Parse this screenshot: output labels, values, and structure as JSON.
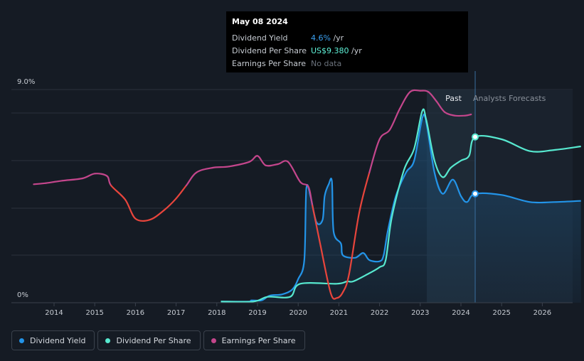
{
  "tooltip": {
    "date": "May 08 2024",
    "rows": [
      {
        "label": "Dividend Yield",
        "value": "4.6%",
        "unit": " /yr"
      },
      {
        "label": "Dividend Per Share",
        "value": "US$9.380",
        "unit": " /yr"
      },
      {
        "label": "Earnings Per Share",
        "value": "No data",
        "unit": ""
      }
    ]
  },
  "legend": [
    {
      "label": "Dividend Yield",
      "color": "#2394e8"
    },
    {
      "label": "Dividend Per Share",
      "color": "#57e8cf"
    },
    {
      "label": "Earnings Per Share",
      "color": "#c4468c"
    }
  ],
  "chart_data": {
    "type": "line",
    "x_ticks": [
      "2014",
      "2015",
      "2016",
      "2017",
      "2018",
      "2019",
      "2020",
      "2021",
      "2022",
      "2023",
      "2024",
      "2025",
      "2026"
    ],
    "y_tick_labels": [
      "0%",
      "9.0%"
    ],
    "ylim": [
      0,
      9.0
    ],
    "xlim": [
      2013.0,
      2027.0
    ],
    "past_label": "Past",
    "forecast_label": "Analysts Forecasts",
    "forecast_start": 2024.35,
    "colors": {
      "dividend_yield": "#2394e8",
      "dividend_per_share": "#57e8cf",
      "earnings_positive": "#c4468c",
      "earnings_negative": "#e8453c"
    },
    "series": [
      {
        "name": "Dividend Yield",
        "points": [
          [
            2018.1,
            0.05
          ],
          [
            2018.8,
            0.05
          ],
          [
            2018.85,
            0.1
          ],
          [
            2019.1,
            0.1
          ],
          [
            2019.3,
            0.3
          ],
          [
            2019.6,
            0.35
          ],
          [
            2019.85,
            0.55
          ],
          [
            2020.0,
            1.0
          ],
          [
            2020.15,
            1.8
          ],
          [
            2020.2,
            4.8
          ],
          [
            2020.3,
            4.5
          ],
          [
            2020.45,
            3.4
          ],
          [
            2020.6,
            3.5
          ],
          [
            2020.65,
            4.5
          ],
          [
            2020.75,
            5.0
          ],
          [
            2020.83,
            5.1
          ],
          [
            2020.87,
            3.0
          ],
          [
            2021.05,
            2.5
          ],
          [
            2021.1,
            2.0
          ],
          [
            2021.4,
            1.9
          ],
          [
            2021.6,
            2.1
          ],
          [
            2021.75,
            1.8
          ],
          [
            2022.0,
            1.75
          ],
          [
            2022.1,
            2.0
          ],
          [
            2022.2,
            3.0
          ],
          [
            2022.4,
            4.5
          ],
          [
            2022.65,
            5.5
          ],
          [
            2022.85,
            6.0
          ],
          [
            2023.05,
            7.8
          ],
          [
            2023.15,
            7.6
          ],
          [
            2023.35,
            5.5
          ],
          [
            2023.55,
            4.6
          ],
          [
            2023.8,
            5.2
          ],
          [
            2024.0,
            4.5
          ],
          [
            2024.15,
            4.25
          ],
          [
            2024.35,
            4.6
          ],
          [
            2025.0,
            4.55
          ],
          [
            2025.7,
            4.25
          ],
          [
            2026.3,
            4.25
          ],
          [
            2026.95,
            4.3
          ]
        ]
      },
      {
        "name": "Dividend Per Share",
        "points": [
          [
            2018.1,
            0.05
          ],
          [
            2018.9,
            0.05
          ],
          [
            2019.25,
            0.25
          ],
          [
            2019.8,
            0.25
          ],
          [
            2020.05,
            0.8
          ],
          [
            2020.95,
            0.8
          ],
          [
            2021.2,
            0.9
          ],
          [
            2021.35,
            0.9
          ],
          [
            2021.7,
            1.2
          ],
          [
            2022.0,
            1.5
          ],
          [
            2022.15,
            1.8
          ],
          [
            2022.3,
            3.6
          ],
          [
            2022.6,
            5.6
          ],
          [
            2022.85,
            6.5
          ],
          [
            2023.05,
            8.1
          ],
          [
            2023.15,
            7.7
          ],
          [
            2023.35,
            6.0
          ],
          [
            2023.55,
            5.3
          ],
          [
            2023.75,
            5.7
          ],
          [
            2024.0,
            6.0
          ],
          [
            2024.2,
            6.2
          ],
          [
            2024.35,
            7.0
          ],
          [
            2025.0,
            6.9
          ],
          [
            2025.7,
            6.4
          ],
          [
            2026.3,
            6.45
          ],
          [
            2026.95,
            6.6
          ]
        ]
      },
      {
        "name": "Earnings Per Share",
        "points": [
          [
            2013.5,
            5.0
          ],
          [
            2013.8,
            5.05
          ],
          [
            2014.2,
            5.15
          ],
          [
            2014.7,
            5.25
          ],
          [
            2015.0,
            5.45
          ],
          [
            2015.3,
            5.35
          ],
          [
            2015.4,
            4.95
          ],
          [
            2015.75,
            4.35
          ],
          [
            2016.0,
            3.55
          ],
          [
            2016.35,
            3.5
          ],
          [
            2016.7,
            3.9
          ],
          [
            2017.0,
            4.4
          ],
          [
            2017.25,
            4.95
          ],
          [
            2017.5,
            5.5
          ],
          [
            2017.9,
            5.7
          ],
          [
            2018.3,
            5.75
          ],
          [
            2018.8,
            5.95
          ],
          [
            2019.0,
            6.2
          ],
          [
            2019.2,
            5.8
          ],
          [
            2019.5,
            5.85
          ],
          [
            2019.75,
            5.95
          ],
          [
            2020.05,
            5.1
          ],
          [
            2020.25,
            4.9
          ],
          [
            2020.35,
            4.1
          ],
          [
            2020.55,
            2.4
          ],
          [
            2020.8,
            0.4
          ],
          [
            2020.95,
            0.2
          ],
          [
            2021.1,
            0.45
          ],
          [
            2021.25,
            1.2
          ],
          [
            2021.5,
            3.8
          ],
          [
            2021.75,
            5.5
          ],
          [
            2022.0,
            6.9
          ],
          [
            2022.25,
            7.3
          ],
          [
            2022.5,
            8.2
          ],
          [
            2022.75,
            8.9
          ],
          [
            2023.0,
            8.95
          ],
          [
            2023.2,
            8.9
          ],
          [
            2023.4,
            8.5
          ],
          [
            2023.6,
            8.05
          ],
          [
            2023.85,
            7.9
          ],
          [
            2024.1,
            7.9
          ],
          [
            2024.25,
            7.95
          ]
        ]
      }
    ],
    "markers": [
      {
        "series": "Dividend Yield",
        "x": 2024.35,
        "y": 4.6
      },
      {
        "series": "Dividend Per Share",
        "x": 2024.35,
        "y": 7.0
      }
    ]
  }
}
